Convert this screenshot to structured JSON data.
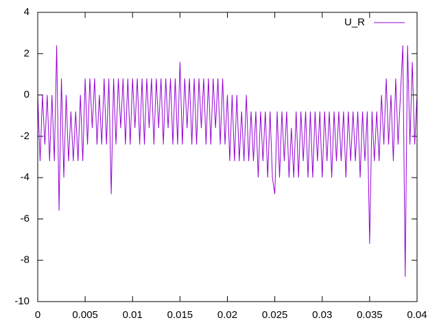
{
  "chart_data": {
    "type": "line",
    "x": [
      0,
      0.00025,
      0.0005,
      0.00075,
      0.001,
      0.00125,
      0.0015,
      0.00175,
      0.002,
      0.00225,
      0.0025,
      0.00275,
      0.003,
      0.00325,
      0.0035,
      0.00375,
      0.004,
      0.00425,
      0.0045,
      0.00475,
      0.005,
      0.00525,
      0.0055,
      0.00575,
      0.006,
      0.00625,
      0.0065,
      0.00675,
      0.007,
      0.00725,
      0.0075,
      0.00775,
      0.008,
      0.00825,
      0.0085,
      0.00875,
      0.009,
      0.00925,
      0.0095,
      0.00975,
      0.01,
      0.01025,
      0.0105,
      0.01075,
      0.011,
      0.01125,
      0.0115,
      0.01175,
      0.012,
      0.01225,
      0.0125,
      0.01275,
      0.013,
      0.01325,
      0.0135,
      0.01375,
      0.014,
      0.01425,
      0.0145,
      0.01475,
      0.015,
      0.01525,
      0.0155,
      0.01575,
      0.016,
      0.01625,
      0.0165,
      0.01675,
      0.017,
      0.01725,
      0.0175,
      0.01775,
      0.018,
      0.01825,
      0.0185,
      0.01875,
      0.019,
      0.01925,
      0.0195,
      0.01975,
      0.02,
      0.02025,
      0.0205,
      0.02075,
      0.021,
      0.02125,
      0.0215,
      0.02175,
      0.022,
      0.02225,
      0.0225,
      0.02275,
      0.023,
      0.02325,
      0.0235,
      0.02375,
      0.024,
      0.02425,
      0.0245,
      0.02475,
      0.025,
      0.02525,
      0.0255,
      0.02575,
      0.026,
      0.02625,
      0.0265,
      0.02675,
      0.027,
      0.02725,
      0.0275,
      0.02775,
      0.028,
      0.02825,
      0.0285,
      0.02875,
      0.029,
      0.02925,
      0.0295,
      0.02975,
      0.03,
      0.03025,
      0.0305,
      0.03075,
      0.031,
      0.03125,
      0.0315,
      0.03175,
      0.032,
      0.03225,
      0.0325,
      0.03275,
      0.033,
      0.03325,
      0.0335,
      0.03375,
      0.034,
      0.03425,
      0.0345,
      0.03475,
      0.035,
      0.03525,
      0.0355,
      0.03575,
      0.036,
      0.03625,
      0.0365,
      0.03675,
      0.037,
      0.03725,
      0.0375,
      0.03775,
      0.038,
      0.03825,
      0.0385,
      0.03875,
      0.039,
      0.03925,
      0.0395,
      0.03975,
      0.04
    ],
    "series": [
      {
        "name": "U_R",
        "color": "#9400d3",
        "values": [
          0,
          -3.2,
          0,
          -2.4,
          0,
          -3.2,
          0,
          -3.2,
          2.4,
          -5.6,
          0.8,
          -4,
          0,
          -3.2,
          -0.8,
          -3.2,
          -0.8,
          -3.2,
          0,
          -3.2,
          0.8,
          -2.4,
          0.8,
          -1.6,
          0.8,
          -2.4,
          0,
          -2.4,
          0.8,
          -2.4,
          0.8,
          -4.8,
          0.8,
          -2.4,
          0.8,
          -1.6,
          0.8,
          -2.4,
          0.8,
          -2.4,
          0.8,
          -1.6,
          0.8,
          -2.4,
          0.8,
          -2.4,
          0.8,
          -1.6,
          0.8,
          -2.4,
          0.8,
          -1.6,
          0.8,
          -2.4,
          0.8,
          -1.6,
          0.8,
          -2.4,
          0.8,
          -2.4,
          1.6,
          -2.4,
          0.8,
          -1.6,
          0.8,
          -2.4,
          0.8,
          -2.4,
          0.8,
          -1.6,
          0.8,
          -2.4,
          0.8,
          -2.4,
          0.8,
          -1.6,
          0.8,
          -2.4,
          0.8,
          -2.4,
          0,
          -3.2,
          0,
          -3.2,
          0,
          -3.2,
          -0.8,
          -3.2,
          0,
          -3.2,
          -0.8,
          -3.2,
          -0.8,
          -4,
          -0.8,
          -3.2,
          -0.8,
          -4,
          -0.8,
          -4,
          -4.8,
          -0.8,
          -4,
          -0.8,
          -3.2,
          -0.8,
          -4,
          -1.6,
          -4,
          -0.8,
          -4,
          -0.8,
          -3.2,
          -0.8,
          -4,
          -0.8,
          -4,
          -0.8,
          -3.2,
          -0.8,
          -4,
          -0.8,
          -3.2,
          -0.8,
          -4,
          -0.8,
          -3.2,
          -0.8,
          -3.2,
          -0.8,
          -4,
          -0.8,
          -3.2,
          -0.8,
          -3.2,
          -0.8,
          -4,
          -0.8,
          -3.2,
          -0.8,
          -7.2,
          -0.8,
          -3.2,
          -0.8,
          -3.2,
          0,
          -2.4,
          0.8,
          -2.4,
          0,
          -3.2,
          0.8,
          -2.4,
          0,
          2.4,
          -8.8,
          2.4,
          -2.4,
          1.6,
          -2.4,
          0
        ]
      }
    ],
    "xlim": [
      0,
      0.04
    ],
    "xticks": [
      0,
      0.005,
      0.01,
      0.015,
      0.02,
      0.025,
      0.03,
      0.035,
      0.04
    ],
    "ylim": [
      -10,
      4
    ],
    "yticks": [
      -10,
      -8,
      -6,
      -4,
      -2,
      0,
      2,
      4
    ],
    "legend": "top-right"
  }
}
